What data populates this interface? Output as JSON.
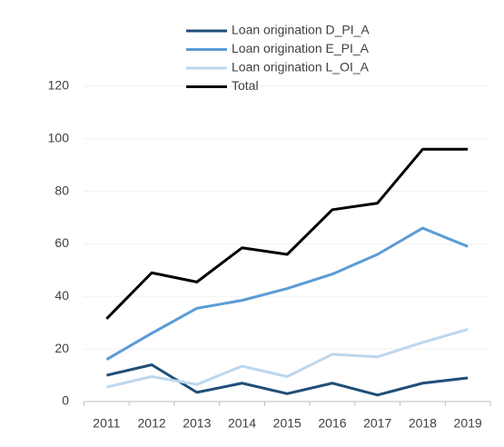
{
  "chart_data": {
    "type": "line",
    "categories": [
      "2011",
      "2012",
      "2013",
      "2014",
      "2015",
      "2016",
      "2017",
      "2018",
      "2019"
    ],
    "series": [
      {
        "name": "Loan origination D_PI_A",
        "color": "#1f4e79",
        "values": [
          10,
          14,
          3.5,
          7,
          3,
          7,
          2.5,
          7,
          9
        ]
      },
      {
        "name": "Loan origination E_PI_A",
        "color": "#5b9bd5",
        "values": [
          16,
          26,
          35.5,
          38.5,
          43,
          48.5,
          56,
          66,
          59
        ]
      },
      {
        "name": "Loan origination L_OI_A",
        "color": "#bdd7ee",
        "values": [
          5.5,
          9.5,
          6.5,
          13.5,
          9.5,
          18,
          17,
          22.5,
          27.5
        ]
      },
      {
        "name": "Total",
        "color": "#000000",
        "values": [
          31.5,
          49,
          45.5,
          58.5,
          56,
          73,
          75.5,
          96,
          96
        ]
      }
    ],
    "ylim": [
      0,
      140
    ],
    "yticks": [
      0,
      20,
      40,
      60,
      80,
      100,
      120
    ],
    "grid": true
  }
}
